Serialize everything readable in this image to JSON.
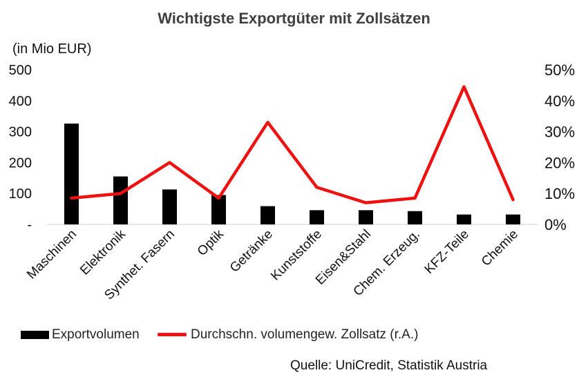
{
  "title": "Wichtigste Exportgüter mit Zollsätzen",
  "unit_label": "(in Mio EUR)",
  "source": "Quelle: UniCredit, Statistik Austria",
  "chart_data": {
    "type": "bar+line",
    "title": "Wichtigste Exportgüter mit Zollsätzen",
    "categories": [
      "Maschinen",
      "Elektronik",
      "Synthet. Fasern",
      "Optik",
      "Getränke",
      "Kunststoffe",
      "Eisen&Stahl",
      "Chem. Erzeug.",
      "KFZ-Teile",
      "Chemie"
    ],
    "series": [
      {
        "name": "Exportvolumen",
        "type": "bar",
        "axis": "left",
        "color": "#000000",
        "values": [
          326,
          155,
          113,
          95,
          59,
          46,
          46,
          43,
          32,
          32
        ]
      },
      {
        "name": "Durchschn. volumengew. Zollsatz (r.A.)",
        "type": "line",
        "axis": "right",
        "color": "#ee1111",
        "values": [
          8.5,
          10,
          20,
          8.5,
          33,
          12,
          7,
          8.5,
          44.5,
          8
        ]
      }
    ],
    "y_left": {
      "range": [
        0,
        500
      ],
      "ticks": [
        "-",
        "100",
        "200",
        "300",
        "400",
        "500"
      ],
      "tick_values": [
        0,
        100,
        200,
        300,
        400,
        500
      ]
    },
    "y_right": {
      "range": [
        0,
        50
      ],
      "ticks": [
        "0%",
        "10%",
        "20%",
        "30%",
        "40%",
        "50%"
      ],
      "tick_values": [
        0,
        10,
        20,
        30,
        40,
        50
      ]
    },
    "grid": false,
    "legend_position": "bottom"
  }
}
